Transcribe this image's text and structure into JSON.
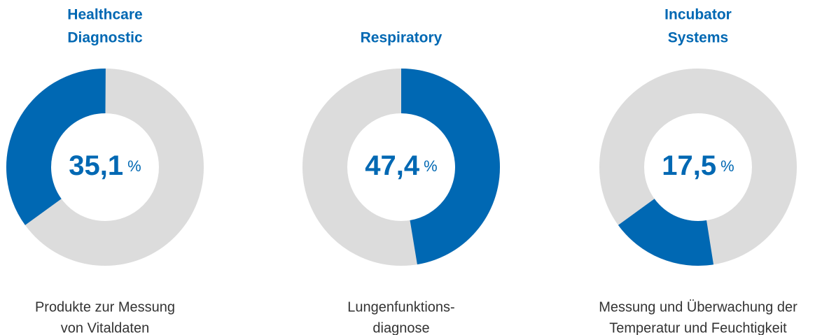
{
  "chart_data": [
    {
      "type": "pie",
      "title": [
        "Healthcare",
        "Diagnostic"
      ],
      "values": [
        35.1
      ],
      "value_labels": [
        "35,1"
      ],
      "unit": "%",
      "description": [
        "Produkte zur Messung",
        "von Vitaldaten"
      ],
      "color": "#0068b3",
      "track_color": "#dcdcdc",
      "ylim": [
        0,
        100
      ],
      "start_angle": 234
    },
    {
      "type": "pie",
      "title": [
        "Respiratory"
      ],
      "values": [
        47.4
      ],
      "value_labels": [
        "47,4"
      ],
      "unit": "%",
      "description": [
        "Lungenfunktions-",
        "diagnose"
      ],
      "color": "#0068b3",
      "track_color": "#dcdcdc",
      "ylim": [
        0,
        100
      ],
      "start_angle": 0
    },
    {
      "type": "pie",
      "title": [
        "Incubator",
        "Systems"
      ],
      "values": [
        17.5
      ],
      "value_labels": [
        "17,5"
      ],
      "unit": "%",
      "description": [
        "Messung und Überwachung der",
        "Temperatur und Feuchtigkeit"
      ],
      "color": "#0068b3",
      "track_color": "#dcdcdc",
      "ylim": [
        0,
        100
      ],
      "start_angle": 171
    }
  ]
}
